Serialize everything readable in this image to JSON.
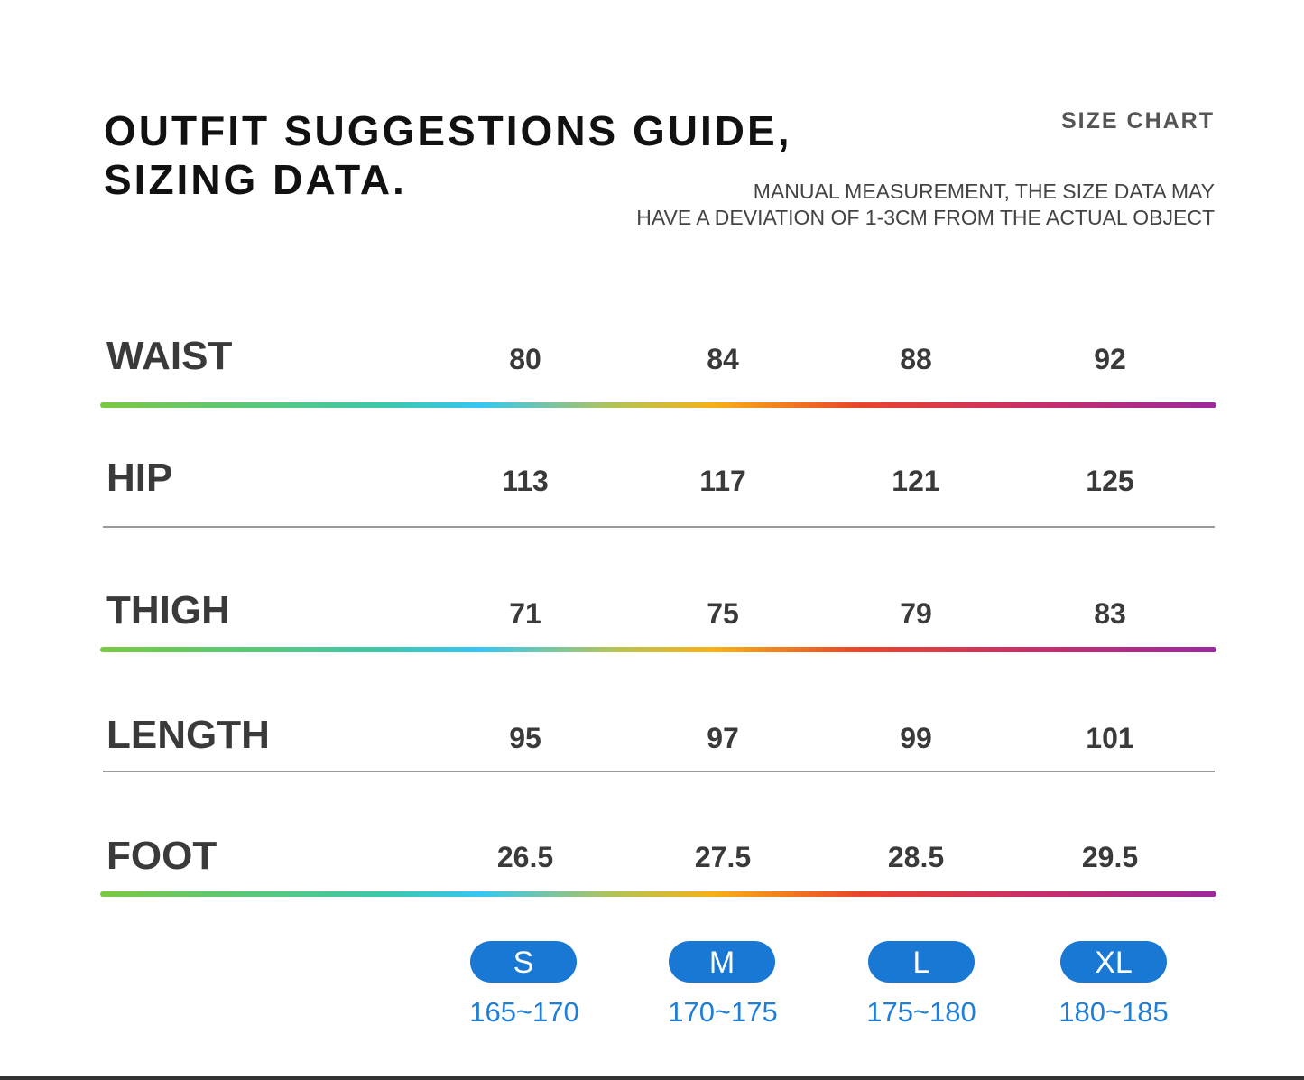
{
  "header": {
    "title_lines": [
      "OUTFIT SUGGESTIONS GUIDE,",
      "SIZING DATA."
    ],
    "subtitle": "SIZE CHART",
    "note_lines": [
      "MANUAL MEASUREMENT, THE SIZE DATA MAY",
      "HAVE A DEVIATION OF 1-3CM FROM THE ACTUAL OBJECT"
    ]
  },
  "rows": [
    {
      "label": "WAIST",
      "values": [
        "80",
        "84",
        "88",
        "92"
      ],
      "divider": "rainbow"
    },
    {
      "label": "HIP",
      "values": [
        "113",
        "117",
        "121",
        "125"
      ],
      "divider": "plain"
    },
    {
      "label": "THIGH",
      "values": [
        "71",
        "75",
        "79",
        "83"
      ],
      "divider": "rainbow"
    },
    {
      "label": "LENGTH",
      "values": [
        "95",
        "97",
        "99",
        "101"
      ],
      "divider": "plain"
    },
    {
      "label": "FOOT",
      "values": [
        "26.5",
        "27.5",
        "28.5",
        "29.5"
      ],
      "divider": "rainbow"
    }
  ],
  "sizes": [
    {
      "label": "S",
      "height_range": "165~170"
    },
    {
      "label": "M",
      "height_range": "170~175"
    },
    {
      "label": "L",
      "height_range": "175~180"
    },
    {
      "label": "XL",
      "height_range": "180~185"
    }
  ],
  "colors": {
    "pill": "#1978d4",
    "height_text": "#1f7ed6",
    "label_text": "#3a3a3a"
  }
}
